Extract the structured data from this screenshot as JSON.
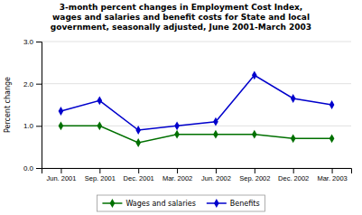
{
  "chart_data": {
    "type": "line",
    "title": [
      "3-month percent changes in Employment Cost Index,",
      "wages and salaries and benefit costs for State and local",
      "government, seasonally adjusted, June 2001-March 2003"
    ],
    "categories": [
      "Jun. 2001",
      "Sep. 2001",
      "Dec. 2001",
      "Mar. 2002",
      "Jun. 2002",
      "Sep. 2002",
      "Dec. 2002",
      "Mar. 2003"
    ],
    "series": [
      {
        "name": "Wages and salaries",
        "color": "#007000",
        "marker": "diamond",
        "values": [
          1.0,
          1.0,
          0.6,
          0.8,
          0.8,
          0.8,
          0.7,
          0.7
        ]
      },
      {
        "name": "Benefits",
        "color": "#0000cc",
        "marker": "diamond",
        "values": [
          1.35,
          1.6,
          0.9,
          1.0,
          1.1,
          2.2,
          1.65,
          1.5
        ]
      }
    ],
    "ylabel": "Percent change",
    "ylim": [
      0.0,
      3.0
    ],
    "yticks": [
      {
        "value": 0.0,
        "label": "0.0"
      },
      {
        "value": 1.0,
        "label": "1.0"
      },
      {
        "value": 2.0,
        "label": "2.0"
      },
      {
        "value": 3.0,
        "label": "3.0"
      }
    ],
    "grid": true,
    "legend": "bottom"
  }
}
